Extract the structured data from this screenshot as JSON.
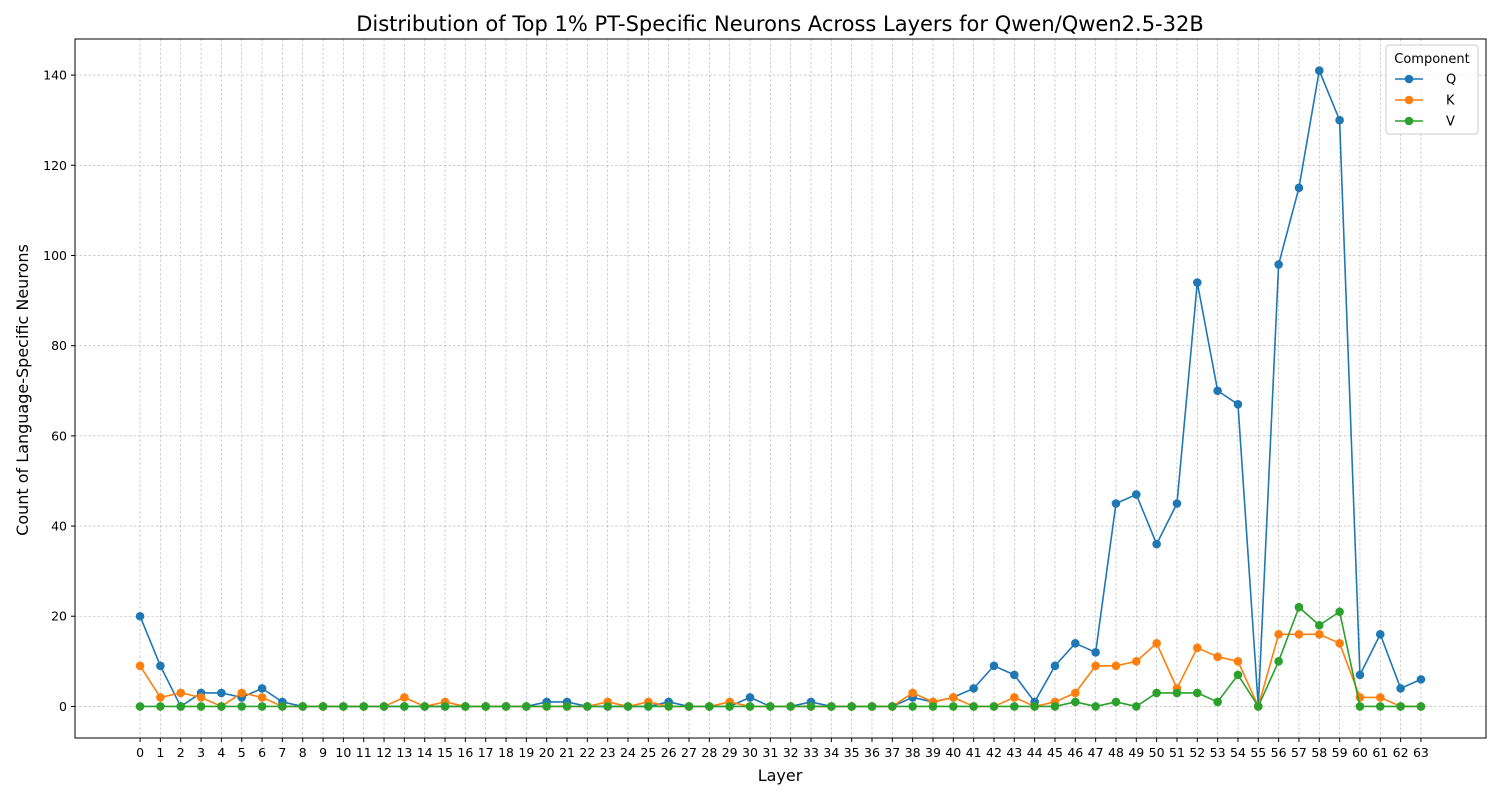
{
  "chart_data": {
    "type": "line",
    "title": "Distribution of Top 1% PT-Specific Neurons Across Layers for Qwen/Qwen2.5-32B",
    "xlabel": "Layer",
    "ylabel": "Count of Language-Specific Neurons",
    "x": [
      0,
      1,
      2,
      3,
      4,
      5,
      6,
      7,
      8,
      9,
      10,
      11,
      12,
      13,
      14,
      15,
      16,
      17,
      18,
      19,
      20,
      21,
      22,
      23,
      24,
      25,
      26,
      27,
      28,
      29,
      30,
      31,
      32,
      33,
      34,
      35,
      36,
      37,
      38,
      39,
      40,
      41,
      42,
      43,
      44,
      45,
      46,
      47,
      48,
      49,
      50,
      51,
      52,
      53,
      54,
      55,
      56,
      57,
      58,
      59,
      60,
      61,
      62,
      63
    ],
    "ylim": [
      -7,
      148
    ],
    "yticks": [
      0,
      20,
      40,
      60,
      80,
      100,
      120,
      140
    ],
    "grid": true,
    "legend": {
      "title": "Component",
      "placement": "top-right"
    },
    "series": [
      {
        "name": "Q",
        "color": "#1f77b4",
        "values": [
          20,
          9,
          0,
          3,
          3,
          2,
          4,
          1,
          0,
          0,
          0,
          0,
          0,
          0,
          0,
          0,
          0,
          0,
          0,
          0,
          1,
          1,
          0,
          0,
          0,
          0,
          1,
          0,
          0,
          0,
          2,
          0,
          0,
          1,
          0,
          0,
          0,
          0,
          2,
          1,
          2,
          4,
          9,
          7,
          1,
          9,
          14,
          12,
          45,
          47,
          36,
          45,
          94,
          70,
          67,
          0,
          98,
          115,
          141,
          130,
          7,
          16,
          4,
          6
        ]
      },
      {
        "name": "K",
        "color": "#ff7f0e",
        "values": [
          9,
          2,
          3,
          2,
          0,
          3,
          2,
          0,
          0,
          0,
          0,
          0,
          0,
          2,
          0,
          1,
          0,
          0,
          0,
          0,
          0,
          0,
          0,
          1,
          0,
          1,
          0,
          0,
          0,
          1,
          0,
          0,
          0,
          0,
          0,
          0,
          0,
          0,
          3,
          1,
          2,
          0,
          0,
          2,
          0,
          1,
          3,
          9,
          9,
          10,
          14,
          4,
          13,
          11,
          10,
          0,
          16,
          16,
          16,
          14,
          2,
          2,
          0,
          0
        ]
      },
      {
        "name": "V",
        "color": "#2ca02c",
        "values": [
          0,
          0,
          0,
          0,
          0,
          0,
          0,
          0,
          0,
          0,
          0,
          0,
          0,
          0,
          0,
          0,
          0,
          0,
          0,
          0,
          0,
          0,
          0,
          0,
          0,
          0,
          0,
          0,
          0,
          0,
          0,
          0,
          0,
          0,
          0,
          0,
          0,
          0,
          0,
          0,
          0,
          0,
          0,
          0,
          0,
          0,
          1,
          0,
          1,
          0,
          3,
          3,
          3,
          1,
          7,
          0,
          10,
          22,
          18,
          21,
          0,
          0,
          0,
          0
        ]
      }
    ]
  }
}
